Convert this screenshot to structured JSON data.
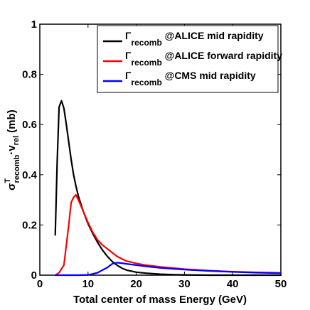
{
  "chart_data": {
    "type": "line",
    "title": "",
    "xlabel": "Total center of mass Energy (GeV)",
    "ylabel": {
      "sigma": "σ",
      "sup": "T",
      "sub": "recomb",
      "dot_v": "·v",
      "sub2": "rel",
      "unit": " (mb)"
    },
    "xlim": [
      0,
      50
    ],
    "ylim": [
      0,
      1
    ],
    "xticks": [
      0,
      10,
      20,
      30,
      40,
      50
    ],
    "yticks": [
      0,
      0.2,
      0.4,
      0.6,
      0.8,
      1
    ],
    "yticklabels": [
      "0",
      "0.2",
      "0.4",
      "0.6",
      "0.8",
      "1"
    ],
    "grid": false,
    "legend_position": "top-right",
    "series": [
      {
        "name": "ALICE mid rapidity",
        "legend": {
          "gamma": "Γ",
          "sub": "recomb",
          "text": " @ALICE mid rapidity"
        },
        "color": "#000000",
        "x": [
          3.2,
          3.6,
          4.0,
          4.5,
          5.0,
          5.5,
          6.0,
          6.5,
          7.0,
          7.5,
          8,
          9,
          10,
          11,
          12,
          13,
          14,
          15,
          16,
          17,
          18,
          20,
          22,
          25,
          28,
          30,
          35,
          40,
          45,
          50
        ],
        "y": [
          0.16,
          0.45,
          0.67,
          0.695,
          0.665,
          0.6,
          0.53,
          0.46,
          0.4,
          0.355,
          0.315,
          0.255,
          0.205,
          0.165,
          0.13,
          0.1,
          0.075,
          0.055,
          0.04,
          0.028,
          0.02,
          0.012,
          0.008,
          0.004,
          0.002,
          0.001,
          0.0,
          0.0,
          0.0,
          0.0
        ]
      },
      {
        "name": "ALICE forward rapidity",
        "legend": {
          "gamma": "Γ",
          "sub": "recomb",
          "text": " @ALICE forward rapidity"
        },
        "color": "#ff0000",
        "x": [
          3.2,
          4.0,
          5.0,
          6.0,
          6.5,
          7.0,
          7.5,
          8,
          9,
          10,
          11,
          12,
          13,
          14,
          15,
          16,
          17,
          18,
          20,
          22,
          25,
          30,
          35,
          40,
          45,
          50
        ],
        "y": [
          0.0,
          0.01,
          0.04,
          0.2,
          0.29,
          0.31,
          0.32,
          0.3,
          0.255,
          0.21,
          0.17,
          0.14,
          0.12,
          0.105,
          0.09,
          0.075,
          0.065,
          0.056,
          0.047,
          0.04,
          0.033,
          0.024,
          0.018,
          0.014,
          0.011,
          0.009
        ]
      },
      {
        "name": "CMS mid rapidity",
        "legend": {
          "gamma": "Γ",
          "sub": "recomb",
          "text": " @CMS mid rapidity"
        },
        "color": "#0000ff",
        "x": [
          3.2,
          5,
          8,
          10,
          11,
          12,
          13,
          14,
          15,
          16,
          17,
          18,
          20,
          22,
          25,
          30,
          35,
          40,
          45,
          50
        ],
        "y": [
          0.0,
          0.0,
          0.0,
          0.001,
          0.005,
          0.01,
          0.02,
          0.03,
          0.045,
          0.05,
          0.048,
          0.045,
          0.04,
          0.035,
          0.029,
          0.022,
          0.017,
          0.013,
          0.01,
          0.008
        ]
      }
    ]
  }
}
